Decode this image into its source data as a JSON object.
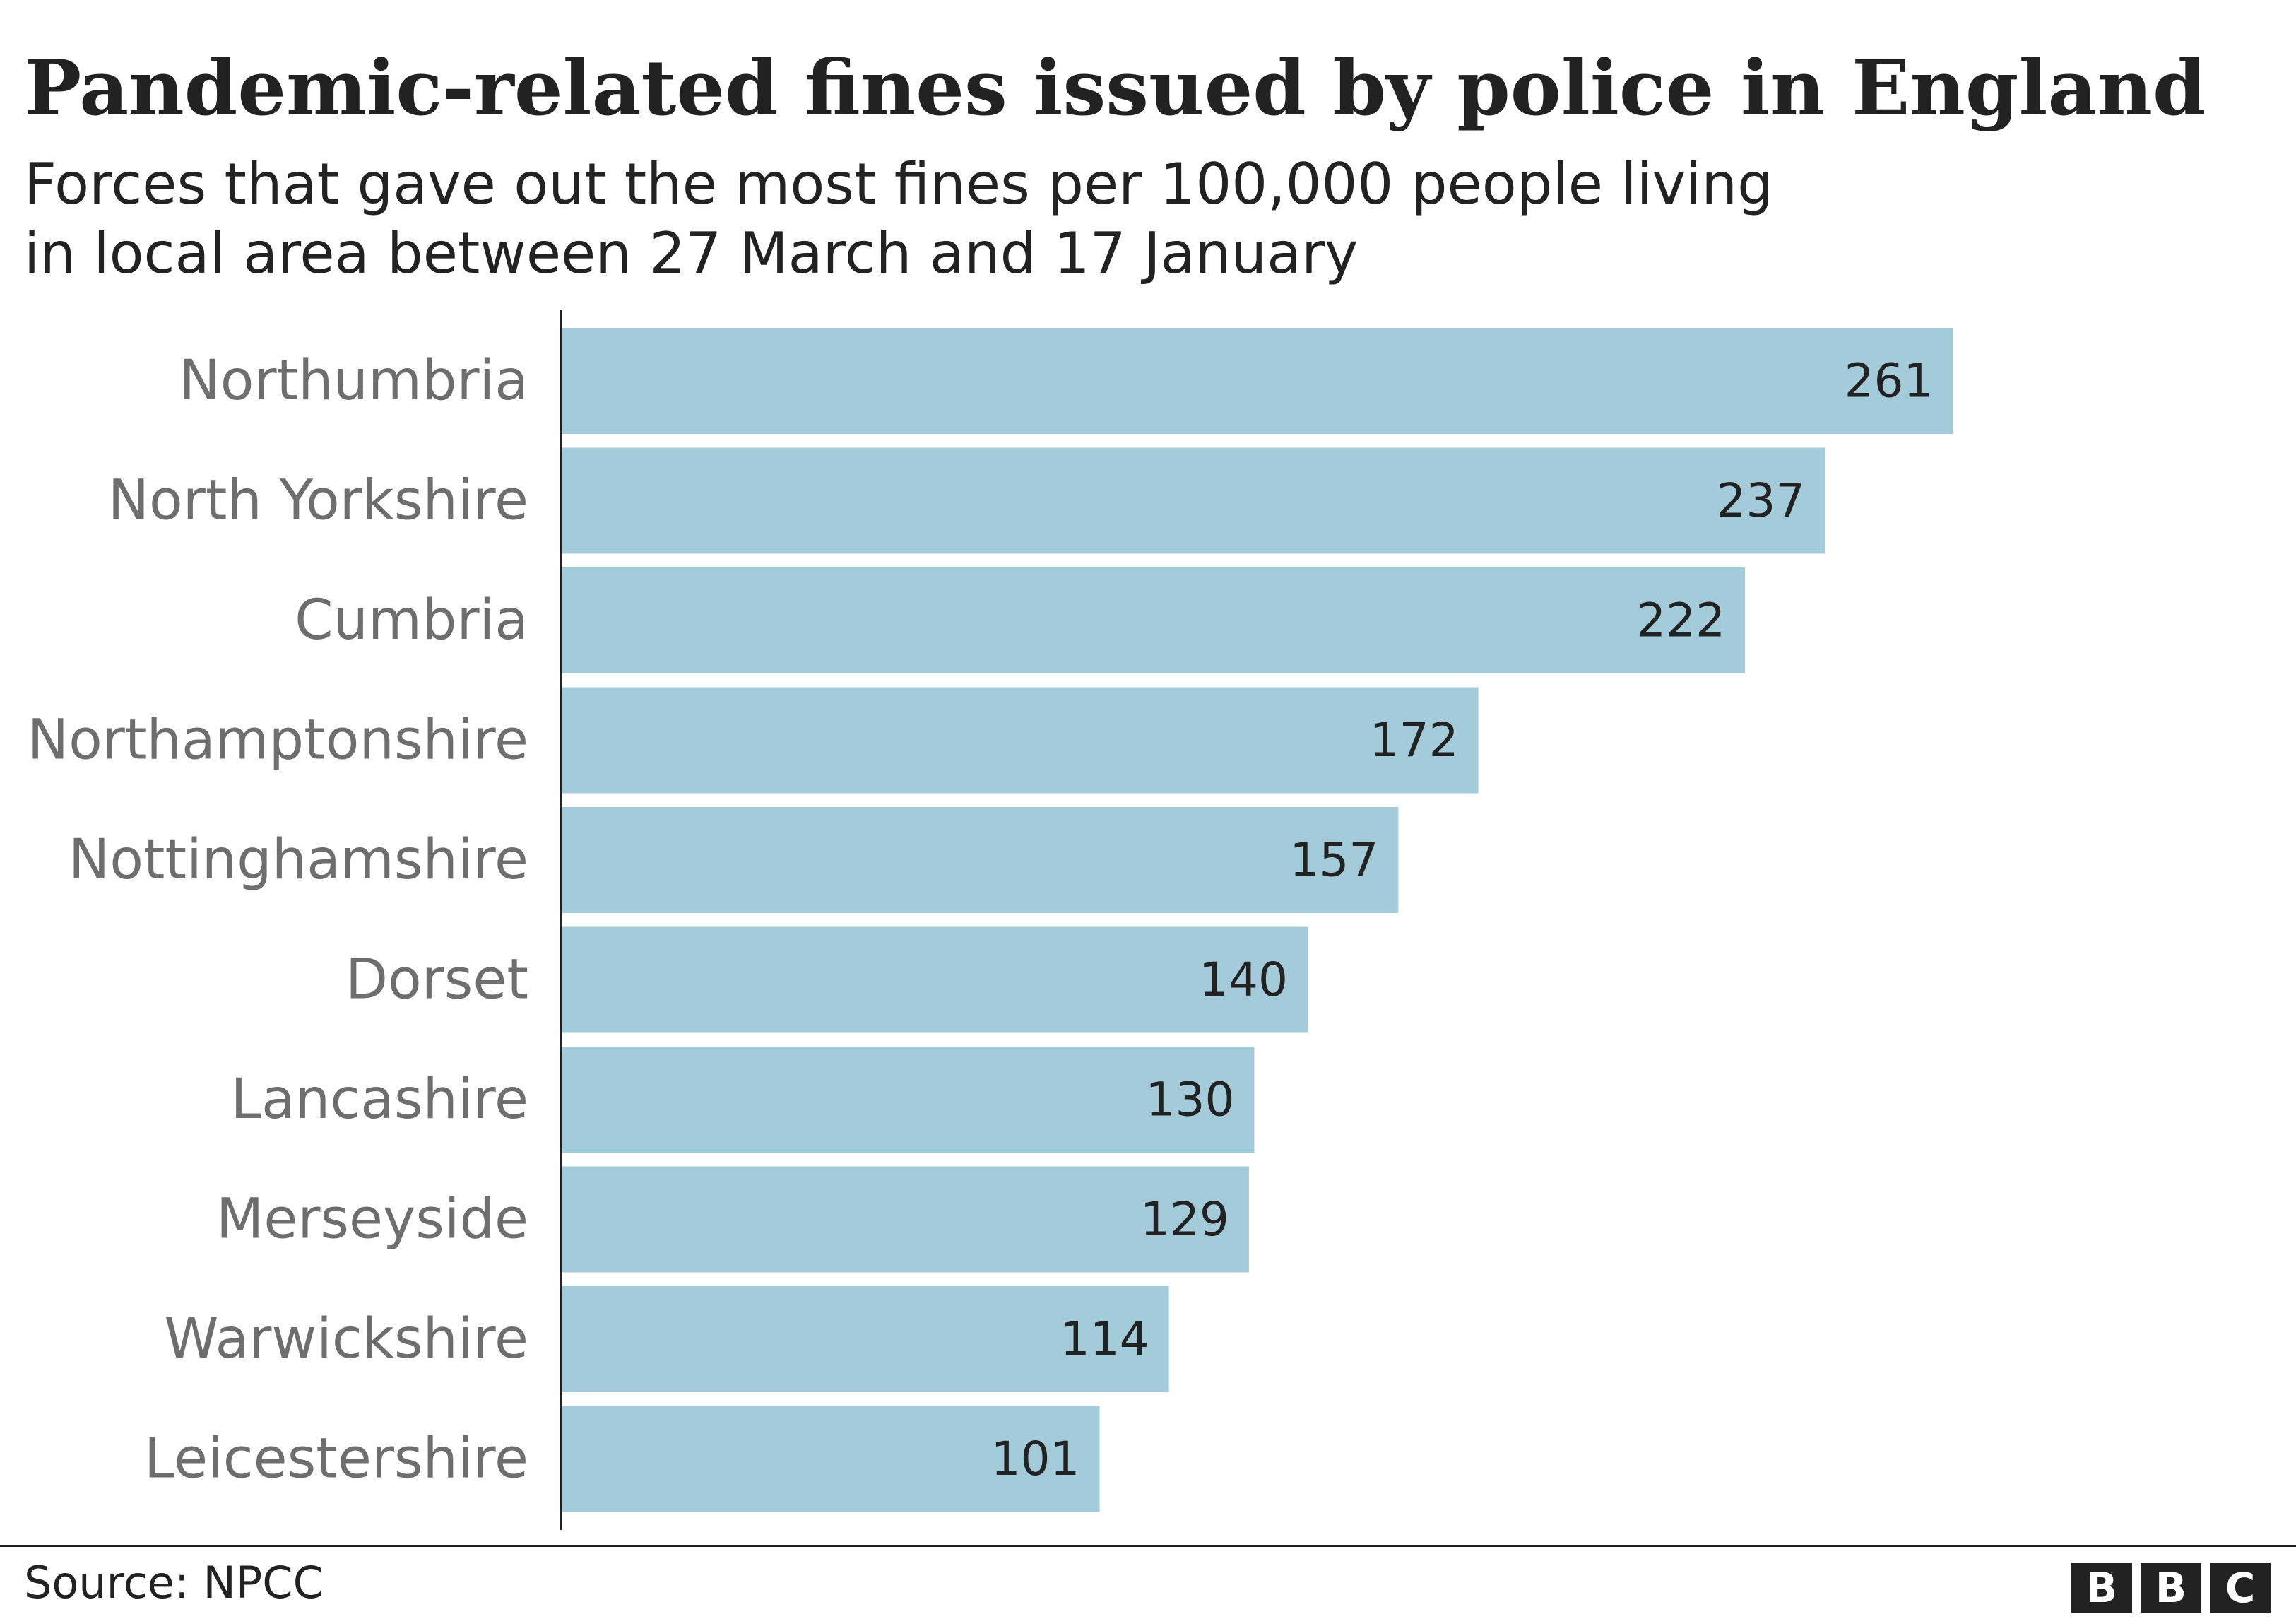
{
  "header": {
    "title": "Pandemic-related fines issued by police in England",
    "subtitle_line1": "Forces that gave out the most fines per 100,000 people living",
    "subtitle_line2": "in local area between 27 March and 17 January"
  },
  "footer": {
    "source": "Source: NPCC",
    "logo_letters": [
      "B",
      "B",
      "C"
    ]
  },
  "colors": {
    "bar": "#a3cbd9",
    "axis": "#222222",
    "category_text": "#6e6e6e",
    "value_text": "#222222"
  },
  "chart_data": {
    "type": "bar",
    "orientation": "horizontal",
    "title": "Pandemic-related fines issued by police in England",
    "subtitle": "Forces that gave out the most fines per 100,000 people living in local area between 27 March and 17 January",
    "categories": [
      "Northumbria",
      "North Yorkshire",
      "Cumbria",
      "Northamptonshire",
      "Nottinghamshire",
      "Dorset",
      "Lancashire",
      "Merseyside",
      "Warwickshire",
      "Leicestershire"
    ],
    "values": [
      261,
      237,
      222,
      172,
      157,
      140,
      130,
      129,
      114,
      101
    ],
    "xlabel": "",
    "ylabel": "",
    "xlim": [
      0,
      300
    ],
    "grid": false,
    "legend": "none"
  }
}
